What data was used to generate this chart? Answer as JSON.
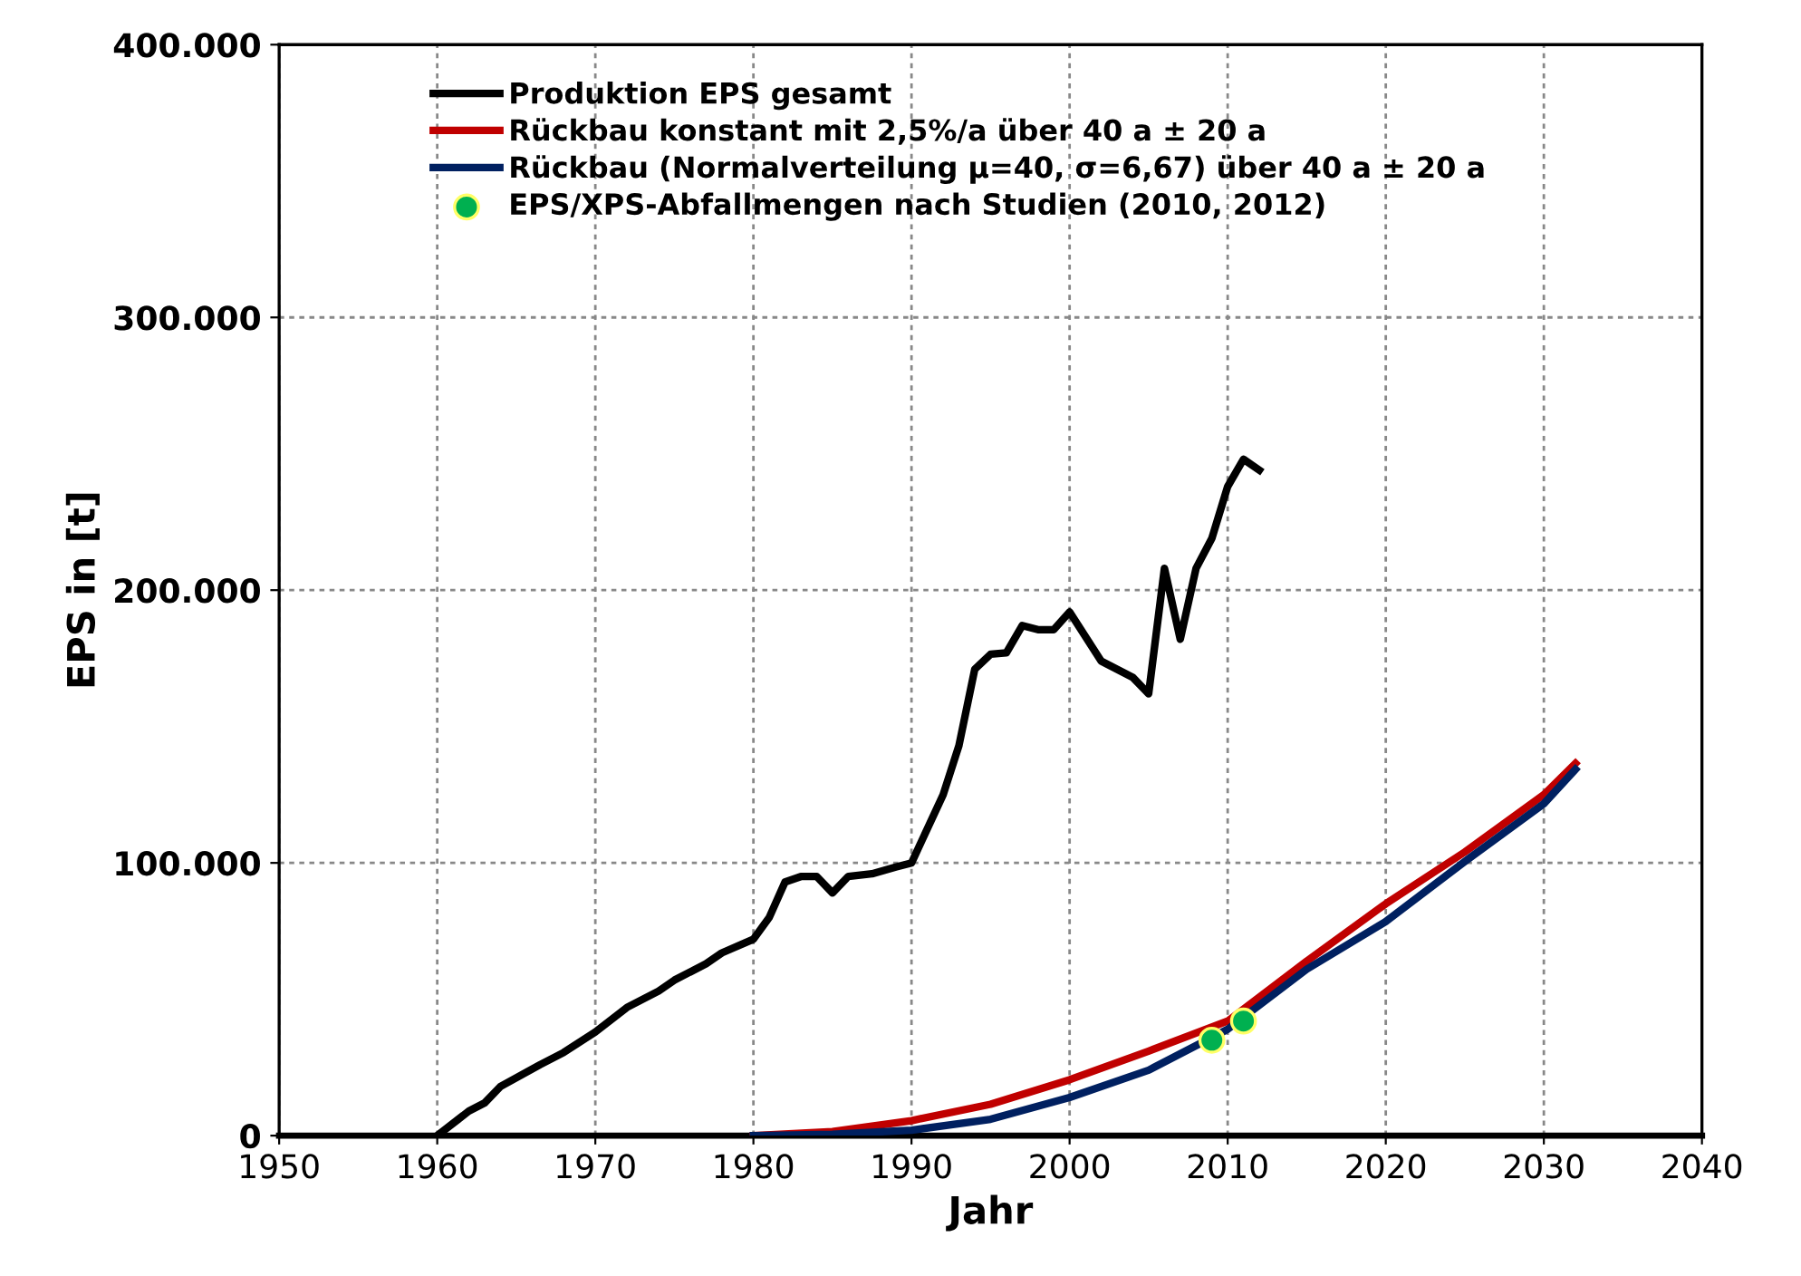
{
  "chart_data": {
    "type": "line",
    "xlabel": "Jahr",
    "ylabel": "EPS in [t]",
    "xlim": [
      1950,
      2040
    ],
    "xticks": [
      1950,
      1960,
      1970,
      1980,
      1990,
      2000,
      2010,
      2020,
      2030,
      2040
    ],
    "ylim": [
      0,
      400000
    ],
    "yticks": [
      {
        "value": 0,
        "label": "0"
      },
      {
        "value": 100000,
        "label": "100.000"
      },
      {
        "value": 200000,
        "label": "200.000"
      },
      {
        "value": 300000,
        "label": "300.000"
      },
      {
        "value": 400000,
        "label": "400.000"
      }
    ],
    "grid": true,
    "legend": "top left",
    "marker": "none",
    "line_style": "solid",
    "series": [
      {
        "name": "Produktion EPS gesamt",
        "color": "#000000",
        "x": [
          1960,
          1962,
          1963,
          1964,
          1966.5,
          1968,
          1970,
          1972,
          1974,
          1975,
          1977,
          1978,
          1980,
          1981,
          1982,
          1983,
          1984,
          1985,
          1986,
          1987.5,
          1989,
          1990,
          1992,
          1993,
          1994,
          1995,
          1996,
          1997,
          1998,
          1999,
          2000,
          2002,
          2003,
          2004,
          2005,
          2006,
          2007,
          2008,
          2009,
          2010,
          2011,
          2012
        ],
        "values": [
          0,
          9000,
          12000,
          18000,
          26000,
          30500,
          38000,
          47000,
          53000,
          57000,
          63000,
          67000,
          72000,
          80000,
          93000,
          95000,
          95000,
          89000,
          95000,
          96000,
          98500,
          100000,
          125000,
          143000,
          171000,
          176500,
          177000,
          187000,
          185500,
          185500,
          192000,
          174000,
          171000,
          168000,
          162000,
          208000,
          182000,
          208000,
          219000,
          238000,
          248000,
          244000
        ]
      },
      {
        "name": "Rückbau konstant mit 2,5%/a über 40 a ± 20 a",
        "color": "#c00000",
        "x": [
          1980,
          1985,
          1990,
          1995,
          2000,
          2005,
          2010,
          2015,
          2020,
          2025,
          2030,
          2032
        ],
        "values": [
          0,
          1500,
          5500,
          11500,
          20500,
          31000,
          42000,
          64000,
          85000,
          104000,
          125000,
          136500
        ]
      },
      {
        "name": "Rückbau (Normalverteilung μ=40, σ=6,67) über 40 a ± 20 a",
        "color": "#002060",
        "x": [
          1980,
          1985,
          1990,
          1995,
          2000,
          2005,
          2010,
          2015,
          2020,
          2025,
          2030,
          2032
        ],
        "values": [
          0,
          500,
          2000,
          6000,
          14000,
          24000,
          39000,
          61000,
          78500,
          100500,
          121700,
          134300
        ]
      },
      {
        "name": "EPS/XPS-Abfallmengen nach Studien (2010, 2012)",
        "type": "scatter",
        "marker": "circle",
        "color": "#00b050",
        "x": [
          2009,
          2011
        ],
        "values": [
          35000,
          42000
        ]
      }
    ]
  }
}
